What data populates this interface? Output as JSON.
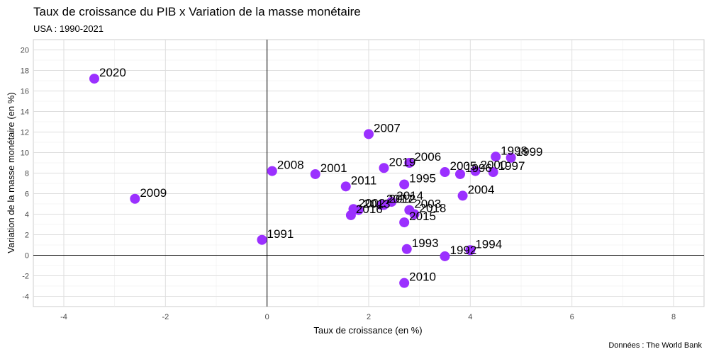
{
  "chart_data": {
    "type": "scatter",
    "title": "Taux de croissance du PIB x Variation de la masse monétaire",
    "subtitle": "USA : 1990-2021",
    "xlabel": "Taux de croissance (en %)",
    "ylabel": "Variation de la masse monétaire (en %)",
    "caption": "Données : The World Bank",
    "xlim": [
      -4.6,
      8.6
    ],
    "ylim": [
      -5.0,
      21.0
    ],
    "x_ticks": [
      -4,
      -2,
      0,
      2,
      4,
      6,
      8
    ],
    "y_ticks": [
      -4,
      -2,
      0,
      2,
      4,
      6,
      8,
      10,
      12,
      14,
      16,
      18,
      20
    ],
    "grid": true,
    "point_color": "#9b30ff",
    "points": [
      {
        "label": "1991",
        "x": -0.1,
        "y": 1.5
      },
      {
        "label": "1992",
        "x": 3.5,
        "y": -0.1
      },
      {
        "label": "1993",
        "x": 2.75,
        "y": 0.6
      },
      {
        "label": "1994",
        "x": 4.0,
        "y": 0.5
      },
      {
        "label": "1995",
        "x": 2.7,
        "y": 6.9
      },
      {
        "label": "1996",
        "x": 3.8,
        "y": 7.9
      },
      {
        "label": "1997",
        "x": 4.45,
        "y": 8.1
      },
      {
        "label": "1998",
        "x": 4.5,
        "y": 9.6
      },
      {
        "label": "1999",
        "x": 4.8,
        "y": 9.5
      },
      {
        "label": "2000",
        "x": 4.1,
        "y": 8.2
      },
      {
        "label": "2001",
        "x": 0.95,
        "y": 7.9
      },
      {
        "label": "2002",
        "x": 1.7,
        "y": 4.5
      },
      {
        "label": "2003",
        "x": 2.8,
        "y": 4.4
      },
      {
        "label": "2004",
        "x": 3.85,
        "y": 5.8
      },
      {
        "label": "2005",
        "x": 3.5,
        "y": 8.1
      },
      {
        "label": "2006",
        "x": 2.8,
        "y": 9.0
      },
      {
        "label": "2007",
        "x": 2.0,
        "y": 11.8
      },
      {
        "label": "2008",
        "x": 0.1,
        "y": 8.2
      },
      {
        "label": "2009",
        "x": -2.6,
        "y": 5.5
      },
      {
        "label": "2010",
        "x": 2.7,
        "y": -2.7
      },
      {
        "label": "2011",
        "x": 1.55,
        "y": 6.7
      },
      {
        "label": "2012",
        "x": 2.3,
        "y": 4.9
      },
      {
        "label": "2013",
        "x": 1.8,
        "y": 4.4
      },
      {
        "label": "2014",
        "x": 2.45,
        "y": 5.2
      },
      {
        "label": "2015",
        "x": 2.7,
        "y": 3.2
      },
      {
        "label": "2016",
        "x": 1.65,
        "y": 3.9
      },
      {
        "label": "2017",
        "x": 2.25,
        "y": 4.9
      },
      {
        "label": "2018",
        "x": 2.9,
        "y": 4.0
      },
      {
        "label": "2019",
        "x": 2.3,
        "y": 8.5
      },
      {
        "label": "2020",
        "x": -3.4,
        "y": 17.2
      }
    ]
  }
}
